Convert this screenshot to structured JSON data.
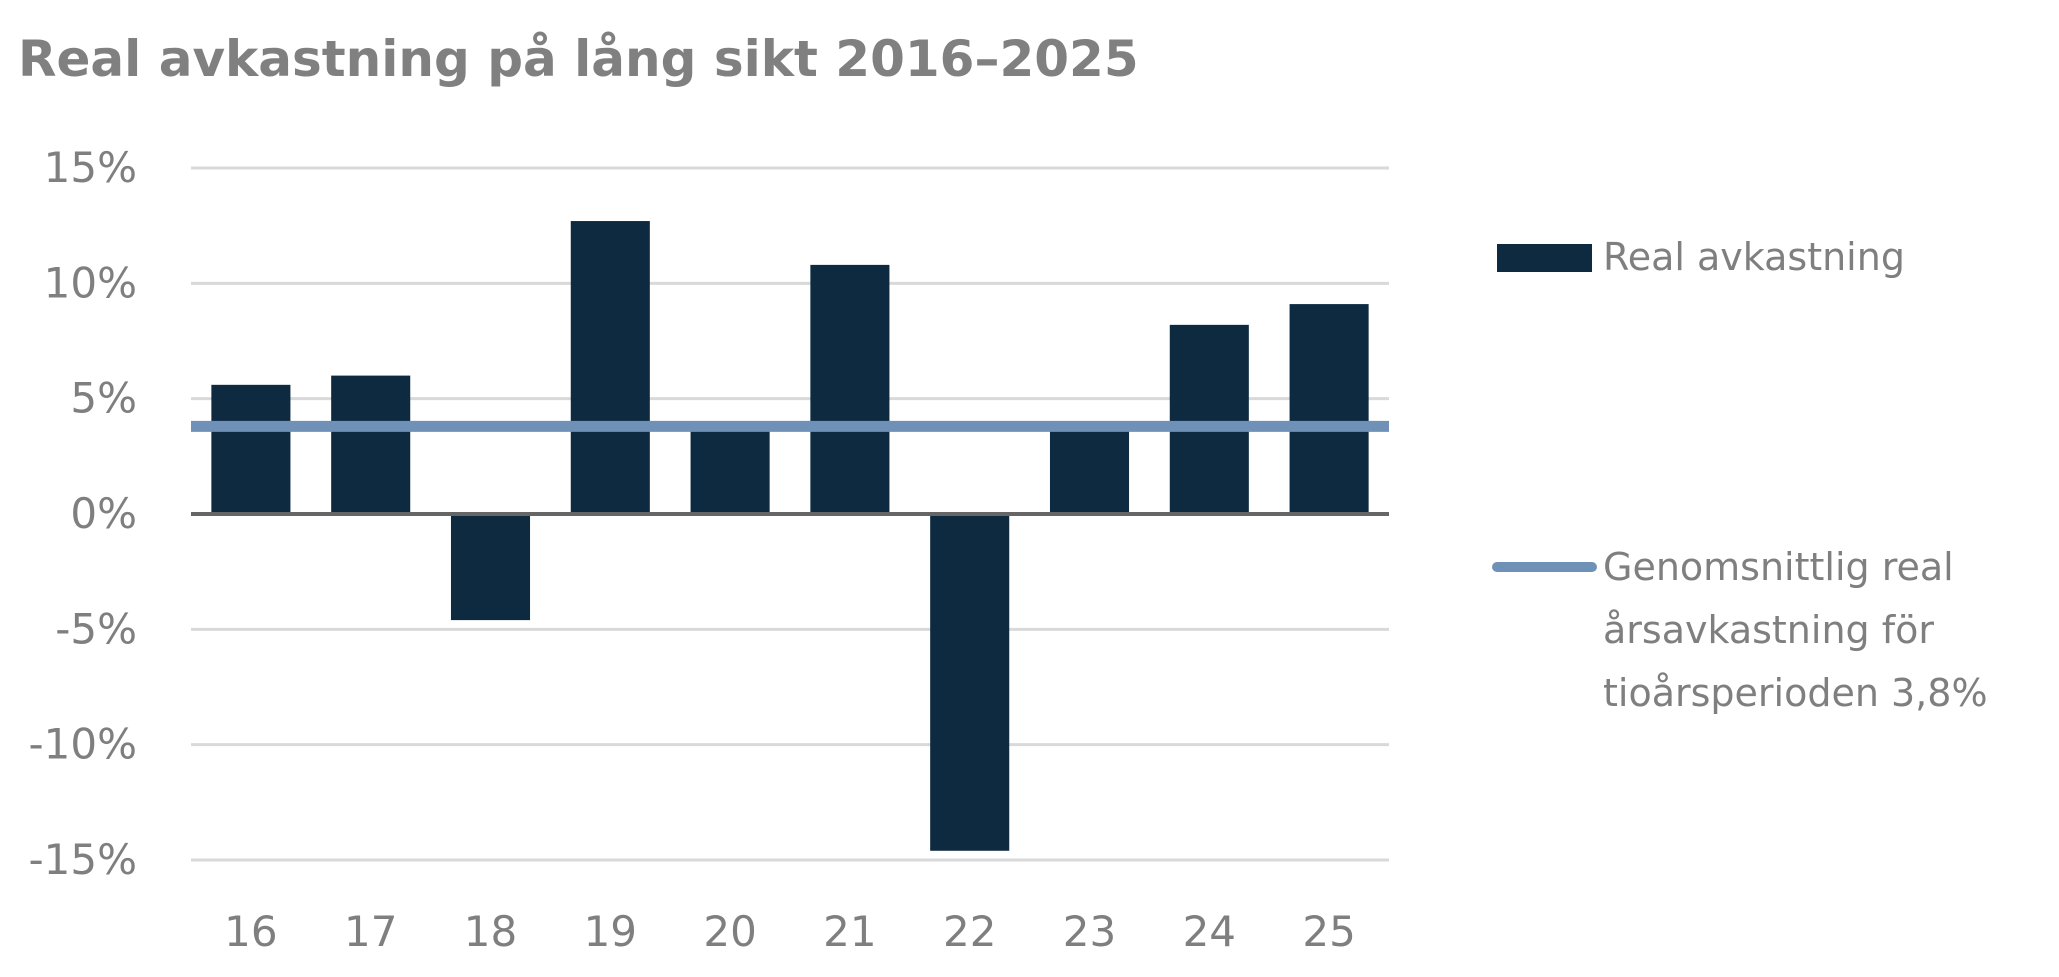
{
  "chart_data": {
    "type": "bar",
    "title": "Real avkastning på lång sikt 2016–2025",
    "categories": [
      "16",
      "17",
      "18",
      "19",
      "20",
      "21",
      "22",
      "23",
      "24",
      "25"
    ],
    "series": [
      {
        "name": "Real avkastning",
        "type": "bar",
        "color": "#0d2a40",
        "values": [
          5.6,
          6.0,
          -4.6,
          12.7,
          3.7,
          10.8,
          -14.6,
          3.7,
          8.2,
          9.1
        ]
      },
      {
        "name": "Genomsnittlig real årsavkastning för tioårsperioden 3,8%",
        "type": "line",
        "color": "#6f91b7",
        "values": [
          3.8,
          3.8,
          3.8,
          3.8,
          3.8,
          3.8,
          3.8,
          3.8,
          3.8,
          3.8
        ]
      }
    ],
    "legend_lines": [
      "Genomsnittlig real",
      "årsavkastning för",
      "tioårsperioden 3,8%"
    ],
    "yticks": [
      15,
      10,
      5,
      0,
      -5,
      -10,
      -15
    ],
    "ytick_labels": [
      "15%",
      "10%",
      "5%",
      "0%",
      "-5%",
      "-10%",
      "-15%"
    ],
    "ylim": [
      -15,
      15
    ],
    "grid": true,
    "legend_position": "right",
    "xlabel": "",
    "ylabel": ""
  }
}
